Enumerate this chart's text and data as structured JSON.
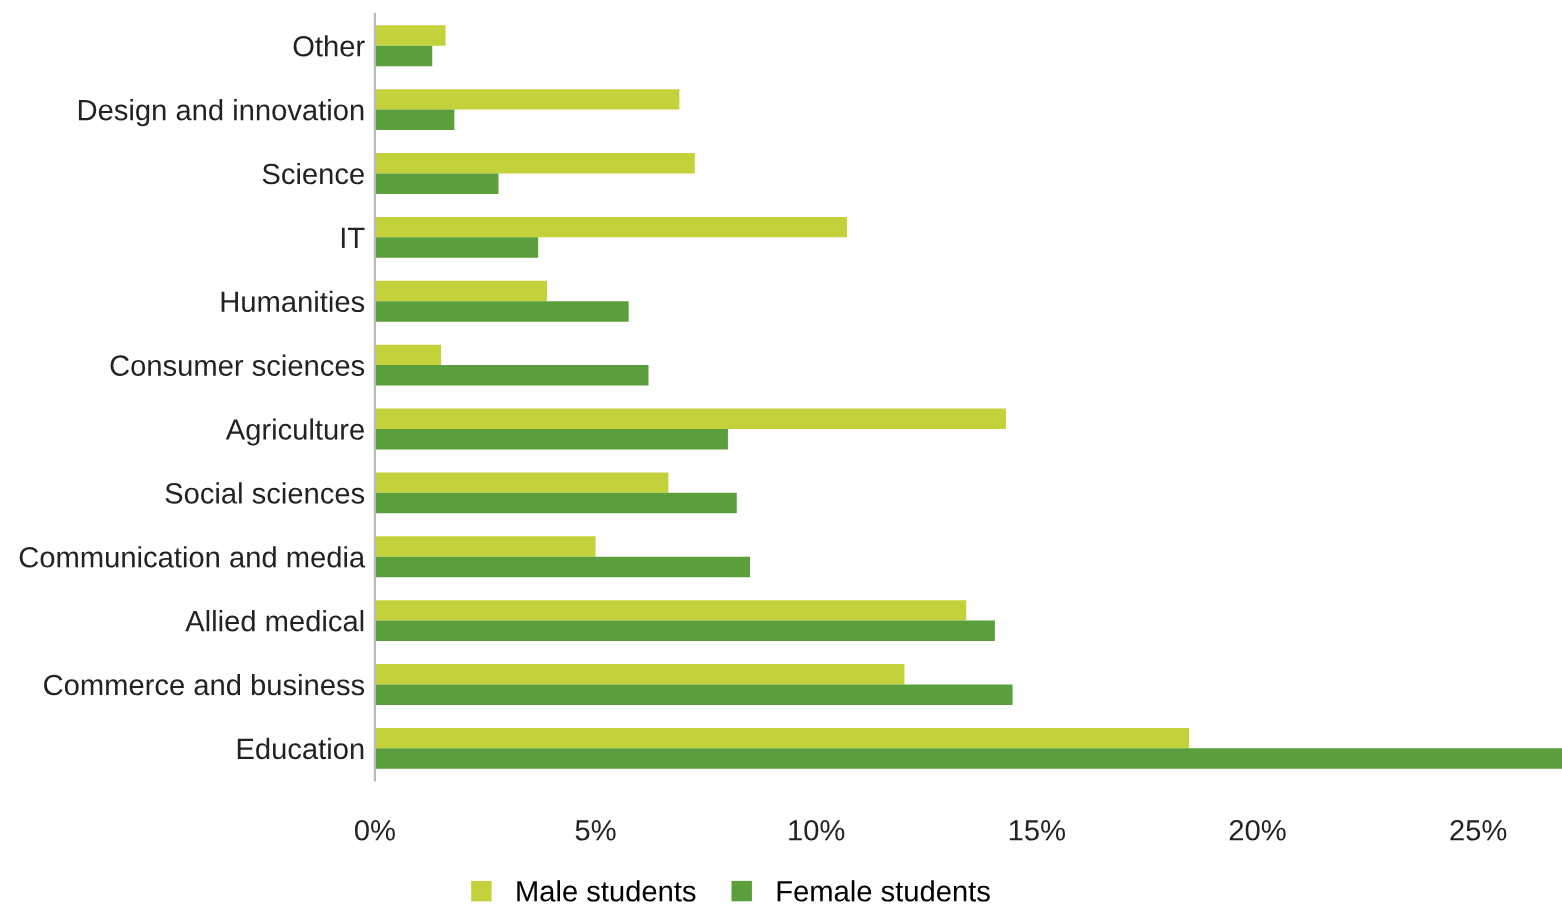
{
  "chart_data": {
    "type": "bar",
    "orientation": "horizontal",
    "categories": [
      "Other",
      "Design and innovation",
      "Science",
      "IT",
      "Humanities",
      "Consumer sciences",
      "Agriculture",
      "Social sciences",
      "Communication and media",
      "Allied medical",
      "Commerce and business",
      "Education"
    ],
    "series": [
      {
        "name": "Male students",
        "color": "#c3d23a",
        "values": [
          1.6,
          6.9,
          7.25,
          10.7,
          3.9,
          1.5,
          14.3,
          6.65,
          5.0,
          13.4,
          12.0,
          18.45
        ]
      },
      {
        "name": "Female students",
        "color": "#5b9e3c",
        "values": [
          1.3,
          1.8,
          2.8,
          3.7,
          5.75,
          6.2,
          8.0,
          8.2,
          8.5,
          14.05,
          14.45,
          26.9
        ]
      }
    ],
    "xlim": [
      0,
      26.9
    ],
    "xticks": [
      {
        "value": 0,
        "label": "0%"
      },
      {
        "value": 5,
        "label": "5%"
      },
      {
        "value": 10,
        "label": "10%"
      },
      {
        "value": 15,
        "label": "15%"
      },
      {
        "value": 20,
        "label": "20%"
      },
      {
        "value": 25,
        "label": "25%"
      }
    ],
    "grid": false,
    "legend": "bottom"
  }
}
